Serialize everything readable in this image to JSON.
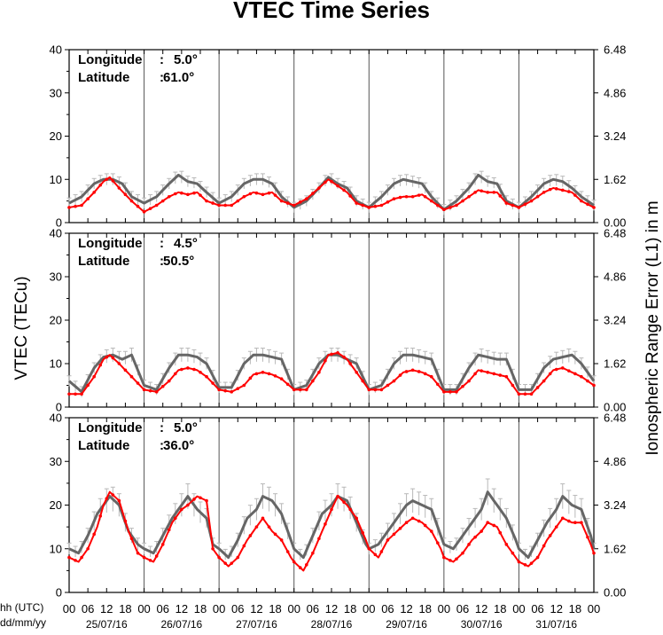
{
  "chart_data": {
    "type": "line",
    "title": "VTEC Time Series",
    "ylabel_left": "VTEC (TECu)",
    "ylabel_right": "Ionospheric Range Error (L1) in m",
    "ylim": [
      0,
      40
    ],
    "ylim_right": [
      0,
      6.48
    ],
    "yticks_left": [
      "0",
      "10",
      "20",
      "30",
      "40"
    ],
    "yticks_right": [
      "0.00",
      "1.62",
      "3.24",
      "4.86",
      "6.48"
    ],
    "x_corner_labels": [
      "hh (UTC)",
      "dd/mm/yy"
    ],
    "hour_ticks": [
      "00",
      "06",
      "12",
      "18"
    ],
    "hour_tick_end": "00",
    "days": [
      "25/07/16",
      "26/07/16",
      "27/07/16",
      "28/07/16",
      "29/07/16",
      "30/07/16",
      "31/07/16"
    ],
    "x_unit": "hours since 00 UTC on 25/07/16",
    "series_colors": {
      "reference": "#666666",
      "observed": "#ff0000",
      "error_bar": "#b8b8b8"
    },
    "panels": [
      {
        "longitude_label": "Longitude",
        "longitude_value": "5.0°",
        "latitude_label": "Latitude",
        "latitude_value": "61.0°",
        "series": [
          {
            "role": "reference",
            "hours": [
              0,
              4,
              8,
              11,
              14,
              17,
              20,
              24,
              28,
              32,
              35,
              38,
              41,
              44,
              48,
              52,
              56,
              59,
              62,
              65,
              68,
              72,
              76,
              80,
              83,
              86,
              89,
              92,
              96,
              100,
              104,
              107,
              110,
              113,
              116,
              120,
              124,
              128,
              131,
              134,
              137,
              140,
              144,
              148,
              152,
              155,
              158,
              161,
              164,
              168
            ],
            "values": [
              4.5,
              6,
              9,
              10,
              10,
              9,
              6,
              4.5,
              6,
              9,
              11,
              9.5,
              9,
              7,
              4.5,
              6,
              9,
              10,
              10,
              9,
              6,
              3.5,
              5,
              8,
              10.5,
              9,
              8,
              5,
              3.5,
              6,
              9,
              10,
              9.5,
              9,
              6,
              3,
              5,
              8,
              11,
              9.5,
              9,
              5,
              3.5,
              6,
              9,
              10,
              9.5,
              8,
              6,
              4
            ]
          },
          {
            "role": "observed",
            "hours": [
              0,
              4,
              8,
              11,
              13,
              16,
              20,
              24,
              28,
              32,
              35,
              38,
              41,
              44,
              48,
              52,
              56,
              59,
              62,
              65,
              68,
              72,
              76,
              80,
              83,
              86,
              89,
              92,
              96,
              100,
              104,
              107,
              110,
              113,
              116,
              120,
              124,
              128,
              131,
              134,
              137,
              140,
              144,
              148,
              152,
              155,
              158,
              161,
              164,
              168
            ],
            "values": [
              3.5,
              4,
              7,
              9.5,
              10.5,
              8,
              5,
              2.5,
              4,
              6,
              7,
              6.5,
              7,
              5,
              4,
              4,
              6,
              7,
              6.5,
              7,
              5,
              4,
              5.5,
              8,
              10,
              8.5,
              7,
              4.5,
              3.5,
              4,
              5.5,
              6,
              6,
              6.5,
              5,
              3,
              4,
              6,
              7.5,
              7,
              7,
              4.5,
              3.5,
              5,
              7,
              8,
              7.5,
              7,
              5,
              3.5
            ]
          }
        ]
      },
      {
        "longitude_label": "Longitude",
        "longitude_value": "4.5°",
        "latitude_label": "Latitude",
        "latitude_value": "50.5°",
        "series": [
          {
            "role": "reference",
            "hours": [
              0,
              4,
              8,
              11,
              14,
              17,
              20,
              24,
              28,
              32,
              35,
              38,
              41,
              44,
              48,
              52,
              56,
              59,
              62,
              65,
              68,
              72,
              76,
              80,
              83,
              86,
              89,
              92,
              96,
              100,
              104,
              107,
              110,
              113,
              116,
              120,
              124,
              128,
              131,
              134,
              137,
              140,
              144,
              148,
              152,
              155,
              158,
              161,
              164,
              168
            ],
            "values": [
              6,
              3.5,
              9,
              11.5,
              12,
              11,
              12,
              5,
              4,
              9,
              12,
              12,
              11.5,
              10,
              4.5,
              4.5,
              10,
              12,
              12,
              11.5,
              11,
              4,
              5,
              10,
              12,
              12,
              11,
              10,
              4,
              5,
              10,
              12,
              12,
              11.5,
              11,
              4,
              4,
              9,
              12,
              11.5,
              11,
              11,
              4,
              4,
              9,
              11,
              11.5,
              12,
              10,
              6
            ]
          },
          {
            "role": "observed",
            "hours": [
              0,
              4,
              8,
              11,
              13,
              16,
              20,
              24,
              28,
              32,
              35,
              38,
              41,
              44,
              48,
              52,
              56,
              59,
              62,
              65,
              68,
              72,
              76,
              80,
              83,
              86,
              89,
              92,
              96,
              100,
              104,
              107,
              110,
              113,
              116,
              120,
              124,
              128,
              131,
              134,
              137,
              140,
              144,
              148,
              152,
              155,
              158,
              161,
              164,
              168
            ],
            "values": [
              3,
              3,
              7,
              11,
              12,
              10,
              7,
              4,
              3.5,
              6,
              8.5,
              9,
              8.5,
              7,
              4,
              3.5,
              5,
              7.5,
              8,
              7.5,
              6.5,
              4,
              4,
              8,
              12,
              12.5,
              11,
              8,
              4,
              4,
              6,
              8,
              8.5,
              8,
              7,
              3.5,
              3.5,
              6,
              8.5,
              8,
              7.5,
              7,
              3,
              3,
              6,
              8.5,
              9,
              8,
              7,
              5
            ]
          }
        ]
      },
      {
        "longitude_label": "Longitude",
        "longitude_value": "5.0°",
        "latitude_label": "Latitude",
        "latitude_value": "36.0°",
        "series": [
          {
            "role": "reference",
            "hours": [
              0,
              3,
              6,
              9,
              11,
              13,
              16,
              19,
              22,
              24,
              27,
              30,
              33,
              36,
              38,
              41,
              44,
              46,
              48,
              51,
              54,
              57,
              60,
              62,
              65,
              68,
              71,
              72,
              75,
              78,
              81,
              84,
              86,
              89,
              92,
              95,
              96,
              99,
              102,
              105,
              108,
              110,
              113,
              116,
              119,
              120,
              123,
              126,
              129,
              132,
              134,
              137,
              140,
              143,
              144,
              147,
              150,
              153,
              156,
              158,
              161,
              164,
              167,
              168
            ],
            "values": [
              10,
              9,
              13,
              18,
              20,
              22,
              20,
              14,
              11,
              10,
              9,
              13,
              17,
              20,
              22,
              19,
              17,
              11,
              10,
              8,
              12,
              17,
              19,
              22,
              21,
              18,
              12,
              10,
              8,
              13,
              18,
              20,
              22,
              21,
              16,
              11,
              10,
              11,
              14,
              17,
              20,
              21,
              20,
              19,
              13,
              11,
              10,
              13,
              16,
              19,
              23,
              20,
              17,
              12,
              10,
              8,
              12,
              16,
              19,
              22,
              20,
              19,
              13,
              10
            ]
          },
          {
            "role": "observed",
            "hours": [
              0,
              3,
              6,
              9,
              11,
              13,
              16,
              19,
              22,
              24,
              27,
              30,
              33,
              36,
              38,
              41,
              44,
              46,
              48,
              51,
              54,
              57,
              60,
              62,
              65,
              68,
              71,
              72,
              75,
              78,
              81,
              84,
              86,
              89,
              92,
              95,
              96,
              99,
              102,
              105,
              108,
              110,
              113,
              116,
              119,
              120,
              123,
              126,
              129,
              132,
              134,
              137,
              140,
              143,
              144,
              147,
              150,
              153,
              156,
              158,
              161,
              164,
              167,
              168
            ],
            "values": [
              8,
              7,
              10,
              15,
              20,
              23,
              21,
              14,
              9,
              8,
              7,
              11,
              16,
              19,
              20,
              22,
              21,
              10,
              8,
              6,
              8,
              12,
              15,
              17,
              14,
              12,
              8,
              7,
              5,
              9,
              14,
              19,
              22,
              20,
              17,
              12,
              10,
              8,
              12,
              14,
              16,
              17,
              16,
              14,
              10,
              8,
              7,
              9,
              12,
              14,
              16,
              15,
              11,
              8,
              7,
              6,
              8,
              12,
              15,
              17,
              16,
              16,
              11,
              9
            ]
          }
        ]
      }
    ]
  }
}
